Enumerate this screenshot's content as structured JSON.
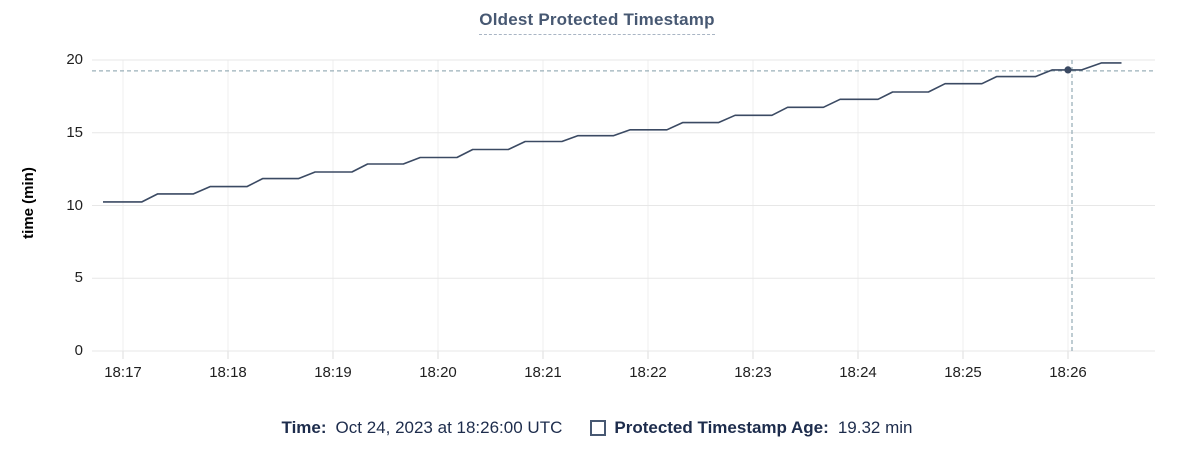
{
  "chart": {
    "title": "Oldest Protected Timestamp",
    "ylabel": "time (min)"
  },
  "legend": {
    "time_label": "Time:",
    "time_value": "Oct 24, 2023 at 18:26:00 UTC",
    "series_label": "Protected Timestamp Age:",
    "series_value": "19.32 min"
  },
  "colors": {
    "title": "#475872",
    "title_underline": "#a9b5c4",
    "series_line": "#3b4a63",
    "hover_point": "#3b4a63",
    "crosshair_dashed": "#9bb0ba",
    "grid_horizontal": "#e7e7e7",
    "grid_vertical": "#efefef",
    "axis_tick": "#dcdcdc",
    "tick_text": "#1f1f1f",
    "legend_text": "#1d2c4c",
    "swatch_border": "#475872",
    "background": "#ffffff"
  },
  "chart_data": {
    "type": "line",
    "title": "Oldest Protected Timestamp",
    "xlabel": "",
    "ylabel": "time (min)",
    "ylim": [
      0,
      20
    ],
    "yticks": [
      0,
      5,
      10,
      15,
      20
    ],
    "xtick_labels": [
      "18:17",
      "18:18",
      "18:19",
      "18:20",
      "18:21",
      "18:22",
      "18:23",
      "18:24",
      "18:25",
      "18:26"
    ],
    "x_unit": "minutes after 18:17:00 UTC",
    "xlim": [
      -0.295,
      9.83
    ],
    "grid": true,
    "legend_position": "bottom",
    "series": [
      {
        "name": "Protected Timestamp Age",
        "color": "#3b4a63",
        "points": [
          [
            -0.19,
            10.25
          ],
          [
            0.18,
            10.25
          ],
          [
            0.33,
            10.8
          ],
          [
            0.67,
            10.8
          ],
          [
            0.83,
            11.3
          ],
          [
            1.18,
            11.3
          ],
          [
            1.33,
            11.85
          ],
          [
            1.67,
            11.85
          ],
          [
            1.83,
            12.3
          ],
          [
            2.18,
            12.3
          ],
          [
            2.33,
            12.85
          ],
          [
            2.67,
            12.85
          ],
          [
            2.83,
            13.3
          ],
          [
            3.18,
            13.3
          ],
          [
            3.33,
            13.85
          ],
          [
            3.67,
            13.85
          ],
          [
            3.83,
            14.4
          ],
          [
            4.18,
            14.4
          ],
          [
            4.33,
            14.8
          ],
          [
            4.67,
            14.8
          ],
          [
            4.83,
            15.2
          ],
          [
            5.18,
            15.2
          ],
          [
            5.33,
            15.7
          ],
          [
            5.67,
            15.7
          ],
          [
            5.83,
            16.2
          ],
          [
            6.18,
            16.2
          ],
          [
            6.33,
            16.75
          ],
          [
            6.67,
            16.75
          ],
          [
            6.83,
            17.3
          ],
          [
            7.19,
            17.3
          ],
          [
            7.33,
            17.8
          ],
          [
            7.67,
            17.8
          ],
          [
            7.83,
            18.37
          ],
          [
            8.18,
            18.37
          ],
          [
            8.32,
            18.86
          ],
          [
            8.69,
            18.86
          ],
          [
            8.85,
            19.32
          ],
          [
            9.13,
            19.32
          ],
          [
            9.32,
            19.8
          ],
          [
            9.51,
            19.8
          ]
        ]
      }
    ],
    "hover": {
      "time": "18:26:00",
      "x": 9.0,
      "value": 19.32
    }
  }
}
